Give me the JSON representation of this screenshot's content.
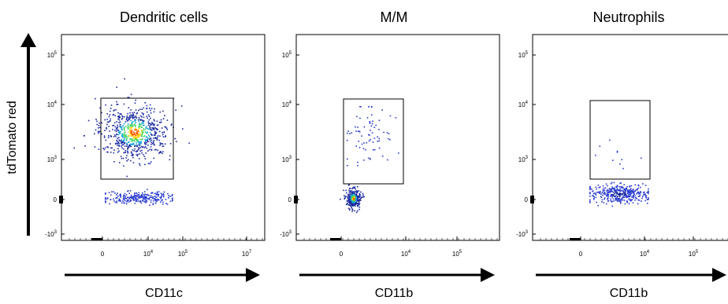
{
  "figure": {
    "y_axis_label": "tdTomato red"
  },
  "chart_data": [
    {
      "type": "scatter",
      "title": "Dendritic cells",
      "xlabel": "CD11c",
      "ylabel": "tdTomato red",
      "x_ticks": [
        "0",
        "10^4",
        "10^5",
        "10^7"
      ],
      "y_ticks": [
        "10^5",
        "10^4",
        "10^3",
        "0",
        "-10^3"
      ],
      "gate": {
        "x_range": [
          "0",
          "10^4"
        ],
        "y_range": [
          "10^2.6",
          "10^4"
        ]
      },
      "populations": [
        {
          "name": "gated",
          "points": 700,
          "density": "high",
          "center": [
            "10^3.5",
            "10^3.4"
          ]
        },
        {
          "name": "below-gate",
          "points": 260,
          "density": "low",
          "center": [
            "10^3.5",
            "0"
          ]
        }
      ]
    },
    {
      "type": "scatter",
      "title": "M/M",
      "xlabel": "CD11b",
      "ylabel": "tdTomato red",
      "x_ticks": [
        "0",
        "10^4",
        "10^5"
      ],
      "y_ticks": [
        "10^5",
        "10^4",
        "10^3",
        "0",
        "-10^3"
      ],
      "gate": {
        "x_range": [
          "0",
          "10^4"
        ],
        "y_range": [
          "10^2.6",
          "10^4"
        ]
      },
      "populations": [
        {
          "name": "gated",
          "points": 75,
          "density": "low",
          "center": [
            "10^3.4",
            "10^3.4"
          ]
        },
        {
          "name": "negative",
          "points": 320,
          "density": "high",
          "center": [
            "0",
            "0"
          ]
        }
      ]
    },
    {
      "type": "scatter",
      "title": "Neutrophils",
      "xlabel": "CD11b",
      "ylabel": "tdTomato red",
      "x_ticks": [
        "0",
        "10^4",
        "10^5"
      ],
      "y_ticks": [
        "10^5",
        "10^4",
        "10^3",
        "0",
        "-10^3"
      ],
      "gate": {
        "x_range": [
          "0",
          "10^4"
        ],
        "y_range": [
          "10^2.6",
          "10^4"
        ]
      },
      "populations": [
        {
          "name": "gated",
          "points": 10,
          "density": "very low",
          "center": [
            "10^3.6",
            "10^3.2"
          ]
        },
        {
          "name": "below-gate",
          "points": 380,
          "density": "medium",
          "center": [
            "10^3.6",
            "0"
          ]
        }
      ]
    }
  ]
}
